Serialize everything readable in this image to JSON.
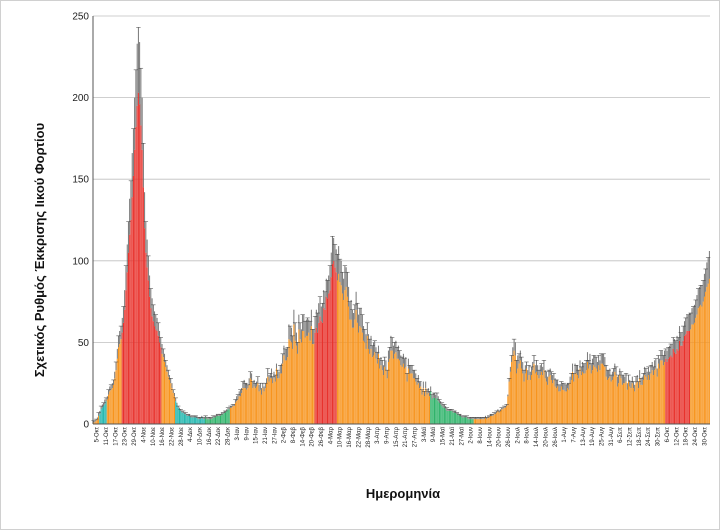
{
  "chart_data": {
    "type": "bar",
    "ylabel": "Σχετικός Ρυθμός Έκκρισης Ιικού Φορτίου",
    "xlabel": "Ημερομηνία",
    "ylim": [
      0,
      250
    ],
    "yticks": [
      0,
      50,
      100,
      150,
      200,
      250
    ],
    "grid": true,
    "colors": {
      "red": "#e8322c",
      "orange": "#f7941d",
      "green": "#2fb36a",
      "teal": "#1fb5ad",
      "cap": "#9a9a9a",
      "error": "#3c3c3c",
      "grid": "#bfbfbf",
      "axis": "#555555"
    },
    "x_tick_labels": [
      "5-Οκτ",
      "11-Οκτ",
      "17-Οκτ",
      "23-Οκτ",
      "29-Οκτ",
      "4-Νοε",
      "10-Νοε",
      "16-Νοε",
      "22-Νοε",
      "28-Νοε",
      "4-Δεκ",
      "10-Δεκ",
      "16-Δεκ",
      "22-Δεκ",
      "28-Δεκ",
      "3-Ιαν",
      "9-Ιαν",
      "15-Ιαν",
      "21-Ιαν",
      "27-Ιαν",
      "2-Φεβ",
      "8-Φεβ",
      "14-Φεβ",
      "20-Φεβ",
      "26-Φεβ",
      "4-Μαρ",
      "10-Μαρ",
      "16-Μαρ",
      "22-Μαρ",
      "28-Μαρ",
      "3-Απρ",
      "9-Απρ",
      "15-Απρ",
      "21-Απρ",
      "27-Απρ",
      "3-Μαϊ",
      "9-Μαϊ",
      "15-Μαϊ",
      "21-Μαϊ",
      "27-Μαϊ",
      "2-Ιουν",
      "8-Ιουν",
      "14-Ιουν",
      "20-Ιουν",
      "26-Ιουν",
      "2-Ιουλ",
      "8-Ιουλ",
      "14-Ιουλ",
      "20-Ιουλ",
      "26-Ιουλ",
      "1-Αυγ",
      "7-Αυγ",
      "13-Αυγ",
      "19-Αυγ",
      "25-Αυγ",
      "31-Αυγ",
      "6-Σεπ",
      "12-Σεπ",
      "18-Σεπ",
      "24-Σεπ",
      "30-Σεπ",
      "6-Οκτ",
      "12-Οκτ",
      "18-Οκτ",
      "24-Οκτ",
      "30-Οκτ"
    ],
    "values": [
      1,
      1,
      2,
      3,
      5,
      6,
      9,
      10,
      11,
      12,
      14,
      15,
      18,
      20,
      21,
      22,
      24,
      28,
      33,
      40,
      47,
      49,
      52,
      56,
      62,
      70,
      82,
      93,
      105,
      116,
      125,
      139,
      152,
      168,
      182,
      195,
      203,
      196,
      183,
      168,
      145,
      120,
      105,
      96,
      88,
      78,
      71,
      66,
      63,
      60,
      58,
      57,
      54,
      50,
      47,
      43,
      41,
      38,
      35,
      32,
      29,
      27,
      25,
      22,
      19,
      17,
      14,
      12,
      10,
      9,
      8,
      7,
      7,
      6,
      6,
      5,
      5,
      5,
      4,
      4,
      4,
      4,
      4,
      4,
      3,
      3,
      3,
      4,
      3,
      3,
      4,
      3,
      3,
      3,
      3,
      3,
      4,
      4,
      4,
      5,
      5,
      5,
      5,
      6,
      6,
      7,
      7,
      8,
      9,
      9,
      10,
      10,
      11,
      11,
      13,
      14,
      15,
      17,
      17,
      19,
      22,
      22,
      22,
      21,
      22,
      24,
      28,
      27,
      22,
      23,
      22,
      23,
      25,
      20,
      21,
      18,
      22,
      20,
      22,
      25,
      29,
      26,
      28,
      28,
      25,
      28,
      26,
      34,
      28,
      28,
      31,
      31,
      37,
      42,
      39,
      39,
      41,
      52,
      51,
      50,
      46,
      61,
      51,
      48,
      43,
      58,
      52,
      50,
      57,
      57,
      53,
      54,
      54,
      56,
      51,
      60,
      49,
      49,
      56,
      59,
      56,
      62,
      66,
      63,
      62,
      71,
      70,
      78,
      77,
      80,
      82,
      90,
      98,
      100,
      96,
      93,
      88,
      92,
      87,
      85,
      80,
      76,
      82,
      84,
      78,
      72,
      64,
      64,
      59,
      59,
      64,
      70,
      62,
      56,
      60,
      59,
      56,
      51,
      50,
      46,
      54,
      46,
      43,
      46,
      41,
      42,
      44,
      40,
      37,
      43,
      34,
      36,
      33,
      30,
      35,
      33,
      28,
      38,
      40,
      45,
      45,
      40,
      43,
      44,
      40,
      40,
      39,
      36,
      35,
      37,
      34,
      35,
      26,
      34,
      31,
      31,
      31,
      28,
      28,
      26,
      24,
      25,
      22,
      23,
      18,
      22,
      17,
      22,
      18,
      19,
      17,
      20,
      15,
      16,
      16,
      15,
      16,
      14,
      13,
      12,
      11,
      10,
      10,
      9,
      8,
      8,
      8,
      8,
      8,
      7,
      7,
      7,
      6,
      6,
      5,
      5,
      4,
      4,
      4,
      4,
      4,
      3,
      3,
      3,
      3,
      3,
      3,
      3,
      3,
      3,
      3,
      3,
      3,
      3,
      3,
      4,
      3,
      4,
      4,
      5,
      5,
      5,
      6,
      6,
      7,
      8,
      7,
      8,
      9,
      9,
      10,
      10,
      11,
      17,
      26,
      32,
      38,
      42,
      45,
      42,
      31,
      34,
      37,
      39,
      34,
      31,
      26,
      31,
      34,
      27,
      30,
      27,
      30,
      33,
      37,
      31,
      32,
      30,
      28,
      30,
      32,
      30,
      33,
      28,
      26,
      24,
      29,
      30,
      27,
      25,
      27,
      23,
      22,
      23,
      20,
      20,
      23,
      21,
      21,
      20,
      20,
      22,
      21,
      25,
      27,
      32,
      26,
      31,
      31,
      30,
      28,
      34,
      30,
      32,
      31,
      31,
      33,
      38,
      34,
      36,
      31,
      33,
      36,
      35,
      34,
      32,
      36,
      33,
      37,
      37,
      36,
      35,
      29,
      27,
      28,
      29,
      26,
      27,
      29,
      32,
      30,
      23,
      25,
      30,
      28,
      24,
      25,
      25,
      26,
      21,
      26,
      23,
      22,
      25,
      22,
      20,
      25,
      26,
      22,
      28,
      24,
      24,
      27,
      30,
      29,
      27,
      30,
      27,
      31,
      33,
      30,
      33,
      34,
      29,
      37,
      34,
      39,
      39,
      36,
      38,
      40,
      38,
      40,
      41,
      42,
      41,
      46,
      44,
      43,
      46,
      45,
      51,
      48,
      48,
      51,
      54,
      55,
      57,
      57,
      57,
      58,
      61,
      61,
      62,
      65,
      67,
      71,
      72,
      73,
      72,
      75,
      78,
      81,
      84,
      86,
      89
    ],
    "errors": [
      1,
      1,
      1,
      1,
      2,
      2,
      2,
      2,
      2,
      3,
      2,
      2,
      3,
      3,
      3,
      3,
      3,
      4,
      5,
      6,
      7,
      8,
      8,
      9,
      10,
      12,
      15,
      17,
      19,
      22,
      24,
      27,
      29,
      32,
      35,
      38,
      40,
      38,
      35,
      32,
      27,
      22,
      19,
      17,
      15,
      13,
      12,
      11,
      10,
      9,
      9,
      8,
      8,
      7,
      6,
      6,
      5,
      5,
      4,
      4,
      4,
      3,
      3,
      3,
      2,
      2,
      2,
      1,
      1,
      1,
      1,
      1,
      1,
      1,
      1,
      1,
      1,
      1,
      1,
      1,
      1,
      1,
      1,
      1,
      1,
      1,
      1,
      1,
      1,
      1,
      1,
      1,
      1,
      1,
      1,
      1,
      1,
      1,
      1,
      1,
      1,
      1,
      1,
      1,
      1,
      1,
      1,
      1,
      1,
      1,
      1,
      1,
      1,
      1,
      2,
      3,
      3,
      3,
      4,
      3,
      4,
      5,
      3,
      4,
      2,
      4,
      4,
      4,
      4,
      4,
      3,
      3,
      4,
      4,
      4,
      4,
      3,
      3,
      3,
      3,
      5,
      4,
      3,
      6,
      4,
      4,
      4,
      3,
      5,
      4,
      5,
      6,
      6,
      6,
      7,
      7,
      6,
      9,
      9,
      9,
      8,
      9,
      11,
      8,
      7,
      9,
      10,
      8,
      10,
      10,
      10,
      10,
      11,
      8,
      12,
      10,
      9,
      9,
      10,
      11,
      12,
      12,
      12,
      9,
      12,
      11,
      11,
      11,
      11,
      11,
      15,
      15,
      17,
      14,
      14,
      14,
      16,
      17,
      14,
      15,
      13,
      13,
      15,
      12,
      15,
      12,
      11,
      12,
      11,
      9,
      9,
      11,
      12,
      11,
      11,
      12,
      11,
      9,
      8,
      9,
      8,
      9,
      9,
      8,
      7,
      8,
      7,
      7,
      7,
      5,
      6,
      5,
      6,
      6,
      6,
      6,
      5,
      7,
      7,
      9,
      8,
      8,
      7,
      7,
      7,
      8,
      6,
      6,
      6,
      6,
      6,
      6,
      5,
      6,
      5,
      5,
      5,
      5,
      5,
      5,
      4,
      5,
      4,
      3,
      3,
      4,
      3,
      4,
      3,
      3,
      3,
      3,
      3,
      3,
      3,
      3,
      3,
      3,
      2,
      2,
      2,
      2,
      2,
      2,
      2,
      1,
      1,
      1,
      1,
      1,
      1,
      1,
      1,
      1,
      1,
      1,
      1,
      1,
      1,
      1,
      1,
      1,
      1,
      1,
      1,
      1,
      1,
      1,
      1,
      1,
      1,
      1,
      1,
      1,
      1,
      1,
      1,
      1,
      1,
      1,
      1,
      1,
      1,
      1,
      1,
      1,
      1,
      1,
      1,
      1,
      1,
      1,
      1,
      1,
      2,
      3,
      4,
      5,
      7,
      8,
      8,
      8,
      6,
      6,
      7,
      7,
      7,
      5,
      4,
      6,
      6,
      5,
      5,
      5,
      5,
      5,
      7,
      6,
      5,
      6,
      5,
      5,
      6,
      5,
      6,
      5,
      4,
      4,
      5,
      5,
      4,
      5,
      5,
      4,
      4,
      4,
      3,
      4,
      4,
      4,
      4,
      3,
      4,
      4,
      4,
      5,
      5,
      6,
      5,
      6,
      5,
      5,
      5,
      6,
      6,
      6,
      6,
      6,
      5,
      7,
      6,
      7,
      6,
      7,
      7,
      6,
      6,
      6,
      6,
      6,
      7,
      6,
      7,
      6,
      5,
      5,
      4,
      5,
      5,
      5,
      5,
      6,
      5,
      4,
      4,
      6,
      5,
      4,
      5,
      4,
      4,
      4,
      4,
      4,
      4,
      4,
      4,
      4,
      4,
      5,
      4,
      5,
      4,
      5,
      5,
      5,
      5,
      5,
      5,
      5,
      5,
      6,
      6,
      5,
      5,
      6,
      6,
      6,
      6,
      7,
      6,
      7,
      7,
      7,
      7,
      8,
      7,
      8,
      8,
      8,
      8,
      9,
      8,
      8,
      9,
      9,
      10,
      10,
      10,
      11,
      10,
      10,
      11,
      11,
      11,
      12,
      12,
      12,
      12,
      13,
      13,
      14,
      14,
      15,
      16,
      17
    ],
    "color_bands": [
      {
        "from": 0,
        "to": 4,
        "color": "orange"
      },
      {
        "from": 5,
        "to": 10,
        "color": "teal"
      },
      {
        "from": 11,
        "to": 22,
        "color": "orange"
      },
      {
        "from": 23,
        "to": 54,
        "color": "red"
      },
      {
        "from": 55,
        "to": 65,
        "color": "orange"
      },
      {
        "from": 66,
        "to": 89,
        "color": "teal"
      },
      {
        "from": 90,
        "to": 109,
        "color": "green"
      },
      {
        "from": 110,
        "to": 177,
        "color": "orange"
      },
      {
        "from": 178,
        "to": 195,
        "color": "red"
      },
      {
        "from": 196,
        "to": 270,
        "color": "orange"
      },
      {
        "from": 271,
        "to": 305,
        "color": "green"
      },
      {
        "from": 306,
        "to": 459,
        "color": "orange"
      },
      {
        "from": 460,
        "to": 479,
        "color": "red"
      }
    ]
  }
}
